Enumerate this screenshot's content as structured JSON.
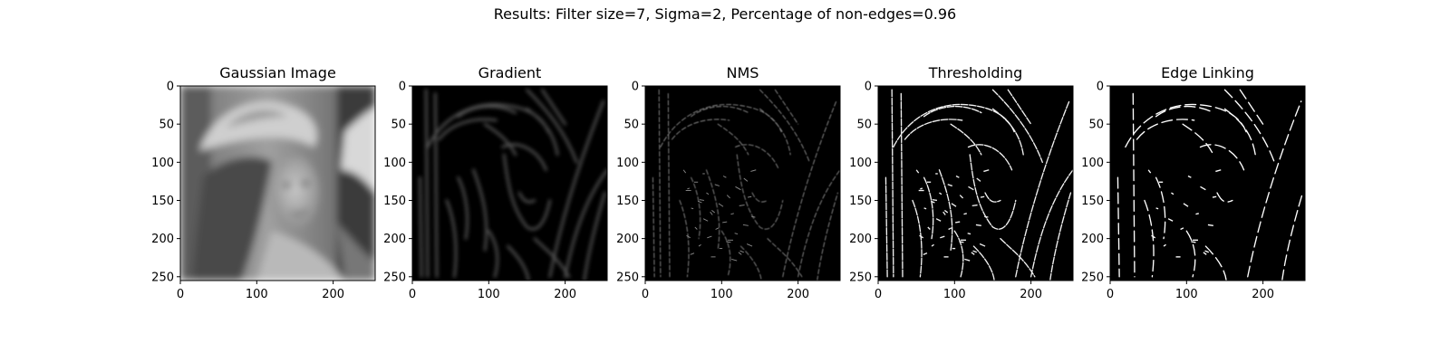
{
  "figure": {
    "suptitle": "Results: Filter size=7, Sigma=2, Percentage of non-edges=0.96"
  },
  "chart_data": [
    {
      "type": "image",
      "title": "Gaussian Image",
      "xlim": [
        0,
        255
      ],
      "ylim": [
        255,
        0
      ],
      "xticks": [
        0,
        100,
        200
      ],
      "yticks": [
        0,
        50,
        100,
        150,
        200,
        250
      ],
      "colormap": "gray",
      "content": "grayscale-portrait"
    },
    {
      "type": "image",
      "title": "Gradient",
      "xlim": [
        0,
        255
      ],
      "ylim": [
        255,
        0
      ],
      "xticks": [
        0,
        100,
        200
      ],
      "yticks": [
        0,
        50,
        100,
        150,
        200,
        250
      ],
      "colormap": "gray",
      "content": "gradient-magnitude"
    },
    {
      "type": "image",
      "title": "NMS",
      "xlim": [
        0,
        255
      ],
      "ylim": [
        255,
        0
      ],
      "xticks": [
        0,
        100,
        200
      ],
      "yticks": [
        0,
        50,
        100,
        150,
        200,
        250
      ],
      "colormap": "gray",
      "content": "thin-edges"
    },
    {
      "type": "image",
      "title": "Thresholding",
      "xlim": [
        0,
        255
      ],
      "ylim": [
        255,
        0
      ],
      "xticks": [
        0,
        100,
        200
      ],
      "yticks": [
        0,
        50,
        100,
        150,
        200,
        250
      ],
      "colormap": "gray",
      "content": "binary-edges"
    },
    {
      "type": "image",
      "title": "Edge Linking",
      "xlim": [
        0,
        255
      ],
      "ylim": [
        255,
        0
      ],
      "xticks": [
        0,
        100,
        200
      ],
      "yticks": [
        0,
        50,
        100,
        150,
        200,
        250
      ],
      "colormap": "gray",
      "content": "linked-edges"
    }
  ]
}
